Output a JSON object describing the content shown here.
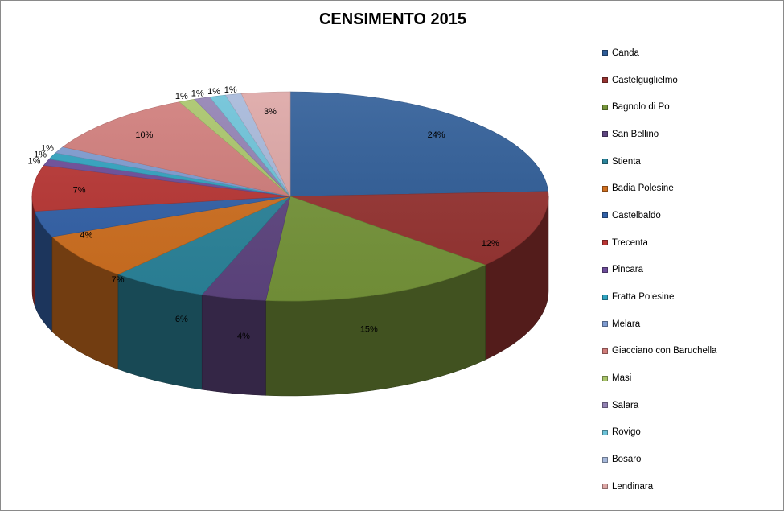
{
  "chart_data": {
    "type": "pie",
    "title": "CENSIMENTO 2015",
    "legend_position": "right",
    "slices": [
      {
        "name": "Canda",
        "value": 24,
        "label": "24%",
        "color": "#2E5C97"
      },
      {
        "name": "Castelguglielmo",
        "value": 12,
        "label": "12%",
        "color": "#963331"
      },
      {
        "name": "Bagnolo di Po",
        "value": 15,
        "label": "15%",
        "color": "#76953A"
      },
      {
        "name": "San Bellino",
        "value": 4,
        "label": "4%",
        "color": "#5E4580"
      },
      {
        "name": "Stienta",
        "value": 6,
        "label": "6%",
        "color": "#2B849B"
      },
      {
        "name": "Badia Polesine",
        "value": 7,
        "label": "7%",
        "color": "#CF6F1F"
      },
      {
        "name": "Castelbaldo",
        "value": 4,
        "label": "4%",
        "color": "#3261A8"
      },
      {
        "name": "Trecenta",
        "value": 7,
        "label": "7%",
        "color": "#B83533"
      },
      {
        "name": "Pincara",
        "value": 1,
        "label": "1%",
        "color": "#6C4C99"
      },
      {
        "name": "Fratta Polesine",
        "value": 1,
        "label": "1%",
        "color": "#30A3C0"
      },
      {
        "name": "Melara",
        "value": 1,
        "label": "1%",
        "color": "#7E9BD0"
      },
      {
        "name": "Giacciano con Baruchella",
        "value": 10,
        "label": "10%",
        "color": "#D07C7A"
      },
      {
        "name": "Masi",
        "value": 1,
        "label": "1%",
        "color": "#A9C56A"
      },
      {
        "name": "Salara",
        "value": 1,
        "label": "1%",
        "color": "#9281B3"
      },
      {
        "name": "Rovigo",
        "value": 1,
        "label": "1%",
        "color": "#6CC2D8"
      },
      {
        "name": "Bosaro",
        "value": 1,
        "label": "1%",
        "color": "#A6B8DA"
      },
      {
        "name": "Lendinara",
        "value": 3,
        "label": "3%",
        "color": "#DDA6A5"
      }
    ]
  }
}
